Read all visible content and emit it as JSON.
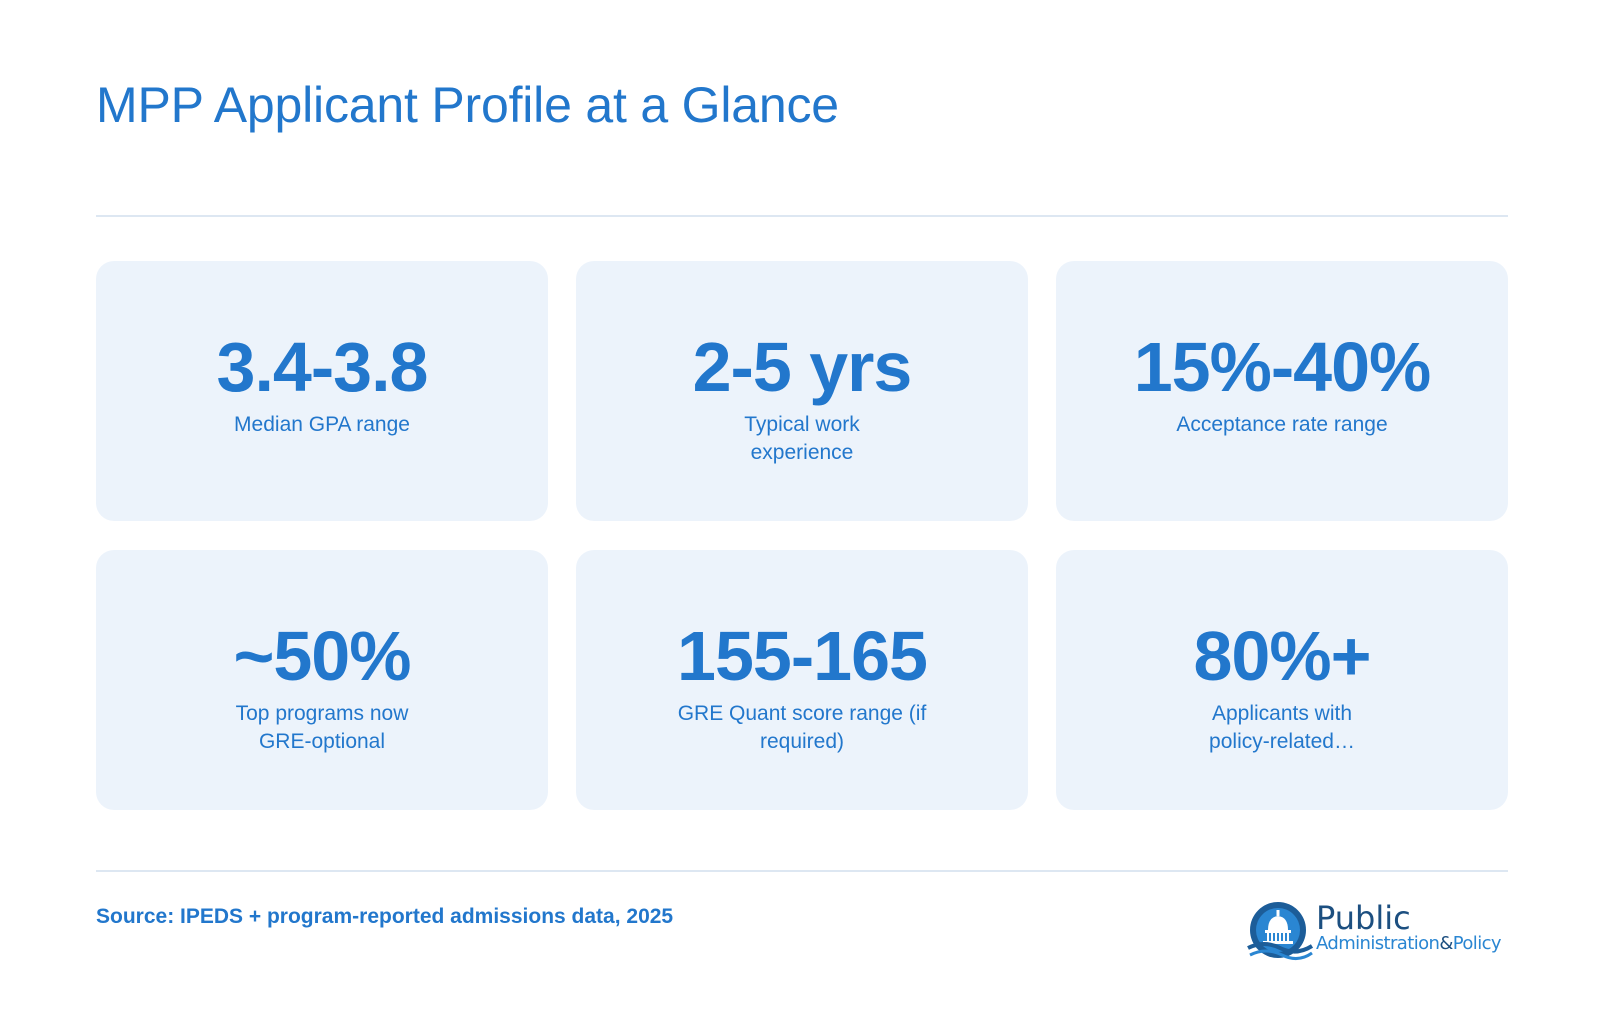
{
  "title": "MPP Applicant Profile at a Glance",
  "colors": {
    "accent": "#2277cc",
    "card_background": "#ecf3fb",
    "divider": "#dde7f2",
    "logo_dark": "#1c4f80"
  },
  "stats": [
    {
      "value": "3.4-3.8",
      "label": "Median GPA range"
    },
    {
      "value": "2-5 yrs",
      "label": "Typical work experience"
    },
    {
      "value": "15%-40%",
      "label": "Acceptance rate range"
    },
    {
      "value": "~50%",
      "label": "Top programs now GRE-optional"
    },
    {
      "value": "155-165",
      "label": "GRE Quant score range (if required)"
    },
    {
      "value": "80%+",
      "label": "Applicants with policy-related…"
    }
  ],
  "source": "Source: IPEDS + program-reported admissions data, 2025",
  "logo": {
    "line1": "Public",
    "line2a": "Administration",
    "line2b": "&",
    "line2c": "Policy",
    "icon": "capitol-dome-icon"
  }
}
